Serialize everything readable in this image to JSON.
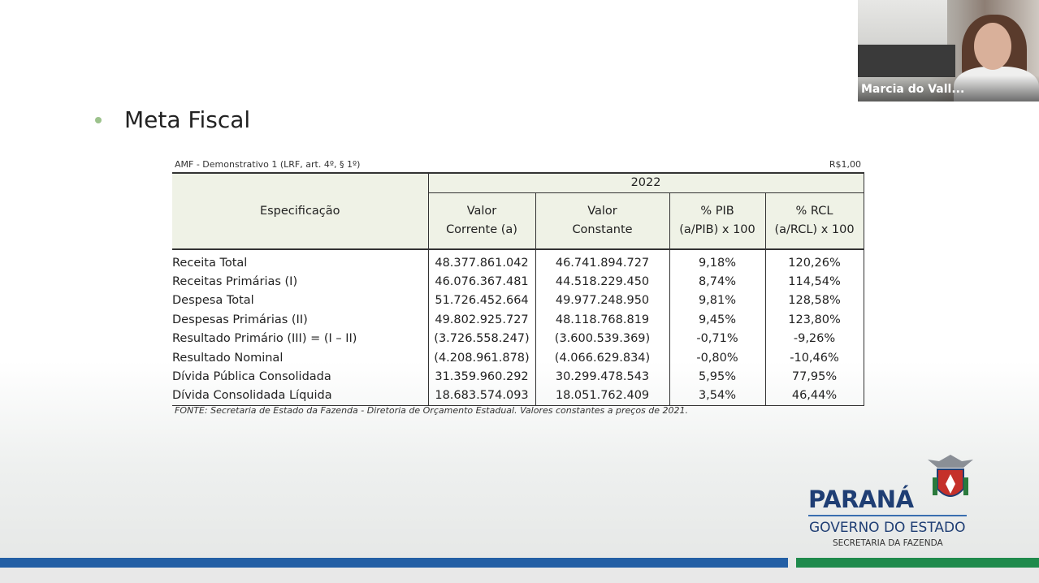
{
  "slide": {
    "title": "Meta Fiscal"
  },
  "table_meta": {
    "left_caption": "AMF - Demonstrativo 1 (LRF, art. 4º, § 1º)",
    "right_caption": "R$1,00",
    "source": "FONTE: Secretaria de Estado da Fazenda - Diretoria de Orçamento Estadual. Valores constantes a preços de 2021."
  },
  "table": {
    "spec_header": "Especificação",
    "year": "2022",
    "col1": [
      "Valor",
      "Corrente (a)"
    ],
    "col2": [
      "Valor",
      "Constante"
    ],
    "col3": [
      "% PIB",
      "(a/PIB) x 100"
    ],
    "col4": [
      "% RCL",
      "(a/RCL) x 100"
    ],
    "rows": [
      {
        "label": "Receita Total",
        "corrente": "48.377.861.042",
        "constante": "46.741.894.727",
        "pib": "9,18%",
        "rcl": "120,26%"
      },
      {
        "label": "Receitas Primárias (I)",
        "corrente": "46.076.367.481",
        "constante": "44.518.229.450",
        "pib": "8,74%",
        "rcl": "114,54%"
      },
      {
        "label": "Despesa Total",
        "corrente": "51.726.452.664",
        "constante": "49.977.248.950",
        "pib": "9,81%",
        "rcl": "128,58%"
      },
      {
        "label": "Despesas Primárias (II)",
        "corrente": "49.802.925.727",
        "constante": "48.118.768.819",
        "pib": "9,45%",
        "rcl": "123,80%"
      },
      {
        "label": "Resultado Primário (III) = (I – II)",
        "corrente": "(3.726.558.247)",
        "constante": "(3.600.539.369)",
        "pib": "-0,71%",
        "rcl": "-9,26%"
      },
      {
        "label": "Resultado Nominal",
        "corrente": "(4.208.961.878)",
        "constante": "(4.066.629.834)",
        "pib": "-0,80%",
        "rcl": "-10,46%"
      },
      {
        "label": "Dívida Pública Consolidada",
        "corrente": "31.359.960.292",
        "constante": "30.299.478.543",
        "pib": "5,95%",
        "rcl": "77,95%"
      },
      {
        "label": "Dívida Consolidada Líquida",
        "corrente": "18.683.574.093",
        "constante": "18.051.762.409",
        "pib": "3,54%",
        "rcl": "46,44%"
      }
    ]
  },
  "video": {
    "participant_name": "Marcia do Vall..."
  },
  "logo": {
    "title": "PARANÁ",
    "subtitle": "GOVERNO DO ESTADO",
    "department": "SECRETARIA DA FAZENDA"
  },
  "colors": {
    "bullet": "#9cc28c",
    "header_bg": "#eff2e6",
    "bar_blue": "#235fa5",
    "bar_green": "#1f8a4c",
    "logo_blue": "#1f3e74"
  }
}
